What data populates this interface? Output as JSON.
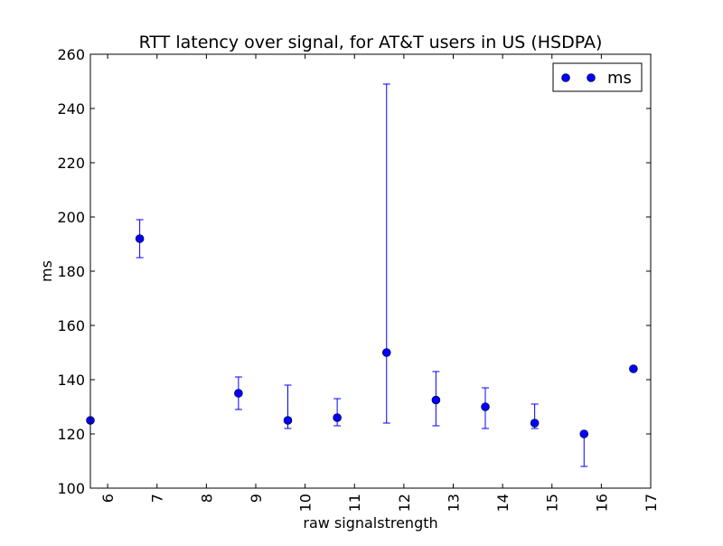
{
  "chart_data": {
    "type": "scatter",
    "title": "RTT latency over signal, for AT&T users in US (HSDPA)",
    "xlabel": "raw signalstrength",
    "ylabel": "ms",
    "xlim": [
      5.65,
      17
    ],
    "ylim": [
      100,
      260
    ],
    "xticks": [
      6,
      7,
      8,
      9,
      10,
      11,
      12,
      13,
      14,
      15,
      16,
      17
    ],
    "xtick_labels": [
      "6",
      "7",
      "8",
      "9",
      "10",
      "11",
      "12",
      "13",
      "14",
      "15",
      "16",
      "17"
    ],
    "yticks": [
      100,
      120,
      140,
      160,
      180,
      200,
      220,
      240,
      260
    ],
    "ytick_labels": [
      "100",
      "120",
      "140",
      "160",
      "180",
      "200",
      "220",
      "240",
      "260"
    ],
    "grid": false,
    "legend": {
      "position": "top-right",
      "entries": [
        "ms"
      ]
    },
    "series": [
      {
        "name": "ms",
        "color": "#0000ff",
        "points": [
          {
            "x": 5.65,
            "y": 125,
            "err_low": 125,
            "err_high": 125
          },
          {
            "x": 6.65,
            "y": 192,
            "err_low": 185,
            "err_high": 199
          },
          {
            "x": 8.65,
            "y": 135,
            "err_low": 129,
            "err_high": 141
          },
          {
            "x": 9.65,
            "y": 125,
            "err_low": 122,
            "err_high": 138
          },
          {
            "x": 10.65,
            "y": 126,
            "err_low": 123,
            "err_high": 133
          },
          {
            "x": 11.65,
            "y": 150,
            "err_low": 124,
            "err_high": 249
          },
          {
            "x": 12.65,
            "y": 132.5,
            "err_low": 123,
            "err_high": 143
          },
          {
            "x": 13.65,
            "y": 130,
            "err_low": 122,
            "err_high": 137
          },
          {
            "x": 14.65,
            "y": 124,
            "err_low": 122,
            "err_high": 131
          },
          {
            "x": 15.65,
            "y": 120,
            "err_low": 108,
            "err_high": 120
          },
          {
            "x": 16.65,
            "y": 144,
            "err_low": 144,
            "err_high": 144
          }
        ]
      }
    ]
  }
}
